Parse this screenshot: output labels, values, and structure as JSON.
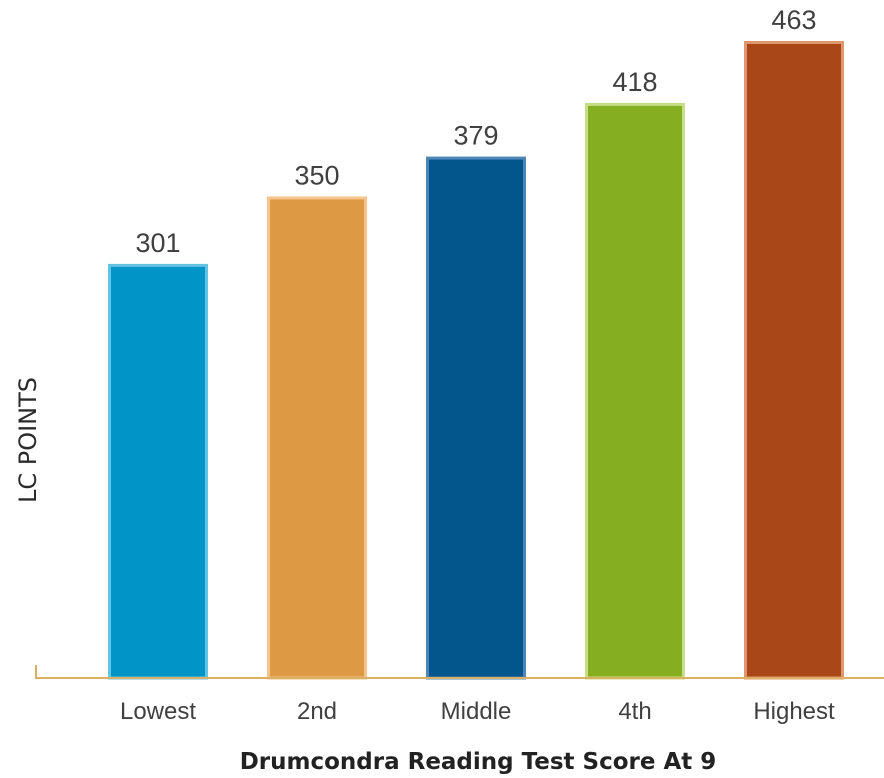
{
  "chart_data": {
    "type": "bar",
    "xlabel": "Drumcondra Reading Test Score At 9",
    "ylabel": "LC POINTS",
    "categories": [
      "Lowest",
      "2nd",
      "Middle",
      "4th",
      "Highest"
    ],
    "values": [
      301,
      350,
      379,
      418,
      463
    ],
    "ylim": [
      0,
      463
    ],
    "grid": false,
    "legend": "none",
    "colors": {
      "bars": [
        "#0095c6",
        "#de9944",
        "#02568b",
        "#86ae21",
        "#a94717"
      ],
      "bar_borders": [
        "#63c3e3",
        "#f5c48c",
        "#4f86b6",
        "#c6de89",
        "#e0976f"
      ],
      "axis": "#dcb062"
    }
  }
}
